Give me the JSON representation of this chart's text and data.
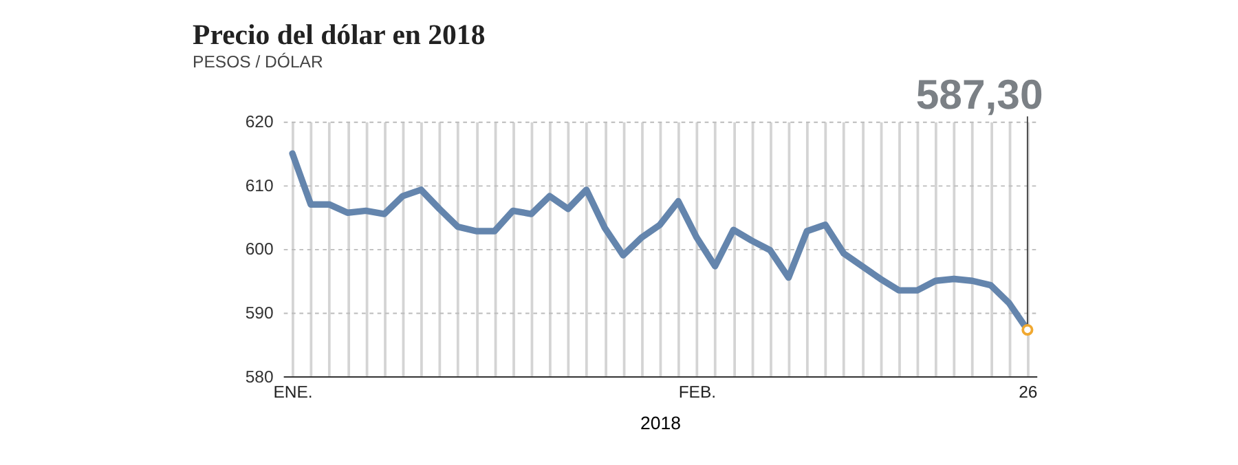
{
  "chart_data": {
    "type": "line",
    "title": "Precio del dólar en 2018",
    "subtitle": "PESOS / DÓLAR",
    "xlabel": "2018",
    "categories": [
      "ENE.",
      null,
      null,
      null,
      null,
      null,
      null,
      null,
      null,
      null,
      null,
      null,
      null,
      null,
      null,
      null,
      null,
      null,
      null,
      null,
      null,
      null,
      "FEB.",
      null,
      null,
      null,
      null,
      null,
      null,
      null,
      null,
      null,
      null,
      null,
      null,
      null,
      null,
      null,
      null,
      null,
      "26"
    ],
    "series": [
      {
        "color": "#6485ad",
        "values": [
          615,
          607,
          607,
          605.7,
          606,
          605.5,
          608.3,
          609.3,
          606.3,
          603.5,
          602.8,
          602.8,
          606,
          605.5,
          608.3,
          606.3,
          609.3,
          603.3,
          599,
          601.8,
          603.8,
          607.5,
          601.8,
          597.3,
          603,
          601.3,
          599.8,
          595.5,
          602.8,
          603.8,
          599.3,
          597.3,
          595.3,
          593.5,
          593.5,
          595,
          595.3,
          595,
          594.3,
          591.5,
          587.3
        ]
      }
    ],
    "ylim": [
      580,
      620
    ],
    "yticks": [
      580,
      590,
      600,
      610,
      620
    ],
    "grid": true,
    "marker": "none",
    "line_style": "solid",
    "annotations": [
      {
        "text": "587,30",
        "x": "26",
        "y": 587.3
      }
    ]
  }
}
